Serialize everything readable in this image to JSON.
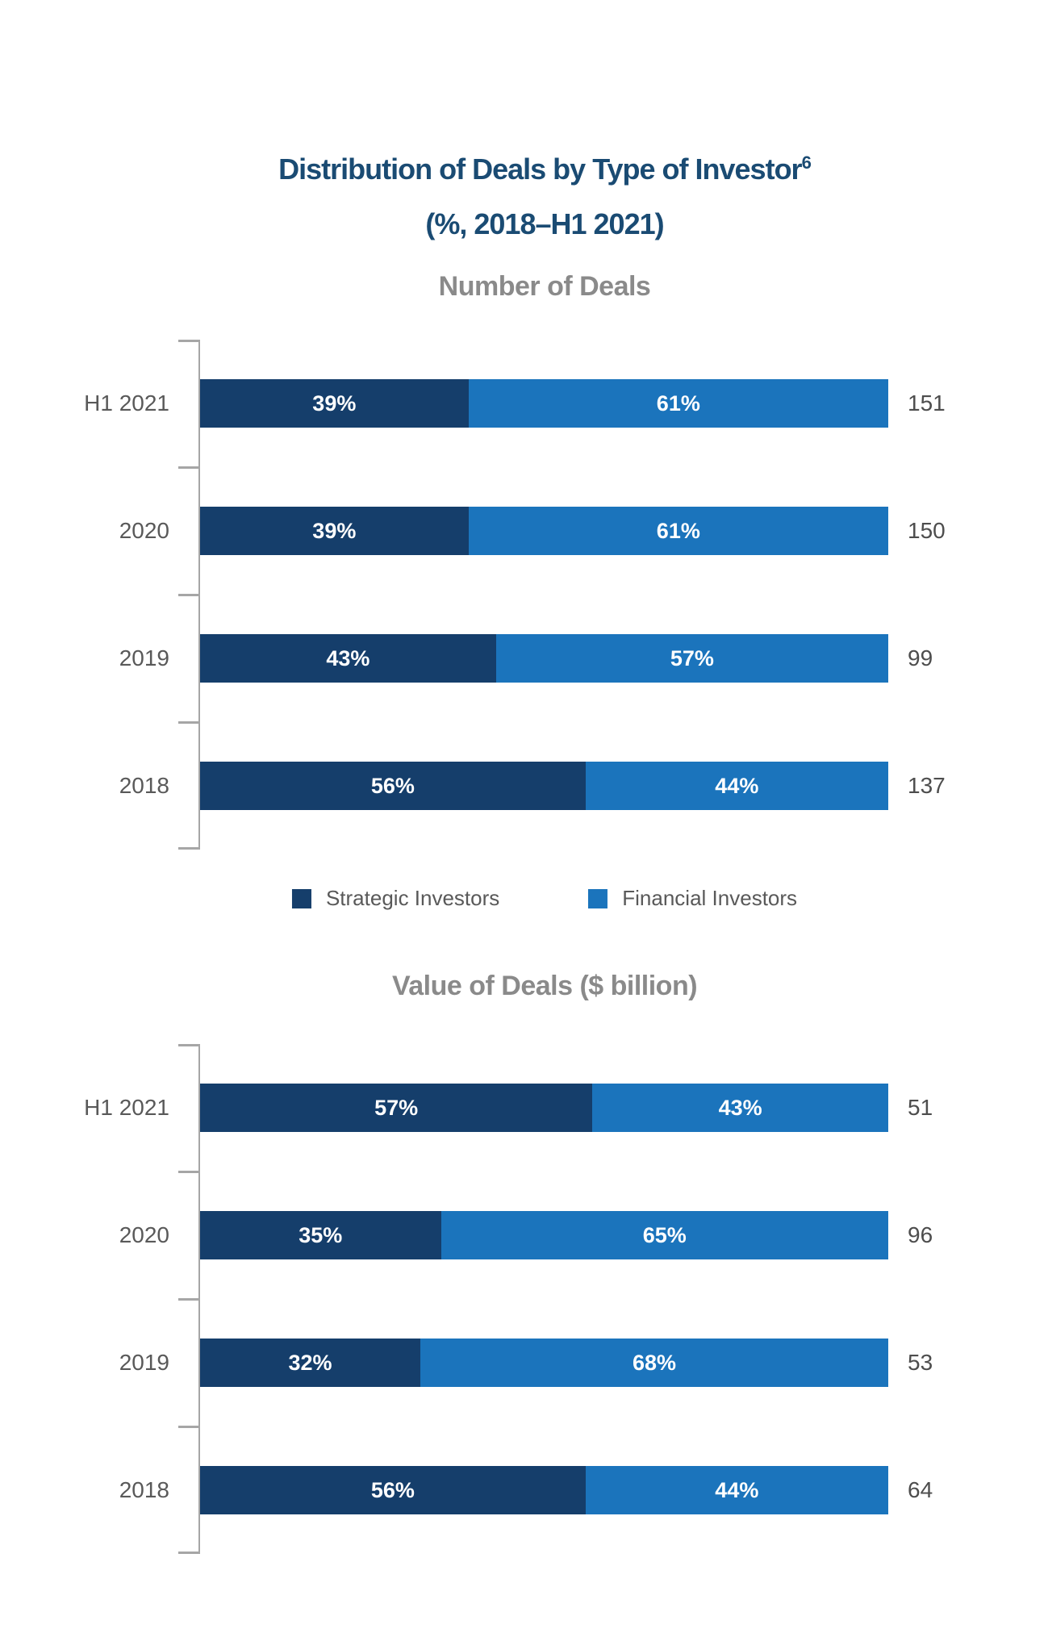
{
  "page": {
    "title_line1": "Distribution of Deals by Type of Investor",
    "title_superscript": "6",
    "title_line2": "(%, 2018–H1 2021)"
  },
  "colors": {
    "title_navy": "#1A4B73",
    "section_title_gray": "#8A8A8A",
    "strategic_dark_blue": "#153E6B",
    "financial_light_blue": "#1B74BC",
    "axis_gray": "#A6A6A6",
    "category_label_gray": "#595959",
    "total_label_gray": "#4D4D4D",
    "bar_value_text": "#FFFFFF"
  },
  "legend": {
    "items": [
      {
        "label": "Strategic Investors",
        "color": "#153E6B"
      },
      {
        "label": "Financial Investors",
        "color": "#1B74BC"
      }
    ]
  },
  "chart_data": [
    {
      "type": "bar",
      "orientation": "horizontal",
      "stacked": true,
      "title": "Number of Deals",
      "categories": [
        "H1 2021",
        "2020",
        "2019",
        "2018"
      ],
      "series": [
        {
          "name": "Strategic Investors",
          "color": "#153E6B",
          "values": [
            39,
            39,
            43,
            56
          ],
          "labels": [
            "39%",
            "39%",
            "43%",
            "56%"
          ]
        },
        {
          "name": "Financial Investors",
          "color": "#1B74BC",
          "values": [
            61,
            61,
            57,
            44
          ],
          "labels": [
            "61%",
            "61%",
            "57%",
            "44%"
          ]
        }
      ],
      "totals": [
        151,
        150,
        99,
        137
      ],
      "unit": "%",
      "xlim": [
        0,
        100
      ],
      "grid": false,
      "legend_position": "bottom"
    },
    {
      "type": "bar",
      "orientation": "horizontal",
      "stacked": true,
      "title": "Value of Deals ($ billion)",
      "categories": [
        "H1 2021",
        "2020",
        "2019",
        "2018"
      ],
      "series": [
        {
          "name": "Strategic Investors",
          "color": "#153E6B",
          "values": [
            57,
            35,
            32,
            56
          ],
          "labels": [
            "57%",
            "35%",
            "32%",
            "56%"
          ]
        },
        {
          "name": "Financial Investors",
          "color": "#1B74BC",
          "values": [
            43,
            65,
            68,
            44
          ],
          "labels": [
            "43%",
            "65%",
            "68%",
            "44%"
          ]
        }
      ],
      "totals": [
        51,
        96,
        53,
        64
      ],
      "unit": "%",
      "xlim": [
        0,
        100
      ],
      "grid": false,
      "legend_position": "none"
    }
  ]
}
